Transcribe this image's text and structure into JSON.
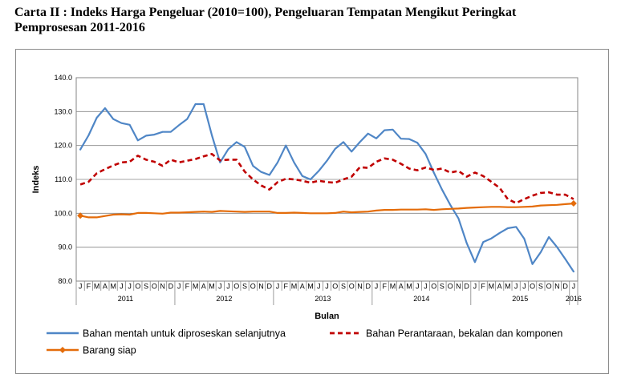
{
  "title_line1": "Carta II : Indeks Harga Pengeluar (2010=100), Pengeluaran Tempatan Mengikut Peringkat",
  "title_line2": "Pemprosesan 2011-2016",
  "chart_data": {
    "type": "line",
    "xlabel": "Bulan",
    "ylabel": "Indeks",
    "ylim": [
      80,
      140
    ],
    "yticks": [
      "80.0",
      "90.0",
      "100.0",
      "110.0",
      "120.0",
      "130.0",
      "140.0"
    ],
    "month_letters": [
      "J",
      "F",
      "M",
      "A",
      "M",
      "J",
      "J",
      "O",
      "S",
      "O",
      "N",
      "D"
    ],
    "years": [
      "2011",
      "2012",
      "2013",
      "2014",
      "2015",
      "2016"
    ],
    "grid": "horizontal",
    "legend_position": "bottom",
    "series": [
      {
        "name": "Bahan mentah untuk diproseskan selanjutnya",
        "color": "#4f86c6",
        "style": "solid",
        "values": [
          118.8,
          123.0,
          128.2,
          131.0,
          127.8,
          126.6,
          126.1,
          121.5,
          122.9,
          123.2,
          124.0,
          124.0,
          126.0,
          127.8,
          132.2,
          132.2,
          123.0,
          115.0,
          118.9,
          121.0,
          119.6,
          114.0,
          112.2,
          111.3,
          115.0,
          120.0,
          115.0,
          111.0,
          110.0,
          112.5,
          115.5,
          119.0,
          121.0,
          118.2,
          121.0,
          123.5,
          122.1,
          124.5,
          124.7,
          122.0,
          121.9,
          120.8,
          117.5,
          112.0,
          107.0,
          102.5,
          98.5,
          91.2,
          85.6,
          91.5,
          92.6,
          94.2,
          95.6,
          96.0,
          92.5,
          85.0,
          88.5,
          93.0,
          90.0,
          86.5,
          82.8
        ]
      },
      {
        "name": "Bahan Perantaraan, bekalan dan komponen",
        "color": "#c00000",
        "style": "dashed",
        "values": [
          108.5,
          109.3,
          111.8,
          113.0,
          114.1,
          115.0,
          115.2,
          117.0,
          115.8,
          115.2,
          114.0,
          115.8,
          115.0,
          115.5,
          116.0,
          116.8,
          117.5,
          115.6,
          115.8,
          115.8,
          112.3,
          110.0,
          108.2,
          107.0,
          109.2,
          110.2,
          110.0,
          109.6,
          109.0,
          109.6,
          109.2,
          109.0,
          110.0,
          110.8,
          113.6,
          113.4,
          115.2,
          116.2,
          115.8,
          114.6,
          113.2,
          112.7,
          113.5,
          112.8,
          113.2,
          112.0,
          112.5,
          110.8,
          112.0,
          111.0,
          109.3,
          107.5,
          104.2,
          103.0,
          104.2,
          105.2,
          106.0,
          106.2,
          105.5,
          105.5,
          104.2
        ]
      },
      {
        "name": "Barang siap",
        "color": "#e46c0a",
        "style": "solid-diamond-ends",
        "values": [
          99.3,
          98.8,
          98.8,
          99.2,
          99.6,
          99.7,
          99.6,
          100.1,
          100.1,
          100.0,
          99.9,
          100.2,
          100.2,
          100.3,
          100.4,
          100.5,
          100.4,
          100.7,
          100.6,
          100.5,
          100.4,
          100.5,
          100.5,
          100.5,
          100.1,
          100.1,
          100.2,
          100.1,
          100.0,
          100.0,
          100.0,
          100.1,
          100.5,
          100.3,
          100.4,
          100.5,
          100.8,
          101.0,
          101.0,
          101.1,
          101.1,
          101.1,
          101.2,
          101.0,
          101.2,
          101.3,
          101.4,
          101.6,
          101.7,
          101.8,
          101.9,
          101.9,
          101.8,
          101.8,
          101.9,
          102.0,
          102.3,
          102.4,
          102.5,
          102.7,
          102.9
        ]
      }
    ]
  }
}
